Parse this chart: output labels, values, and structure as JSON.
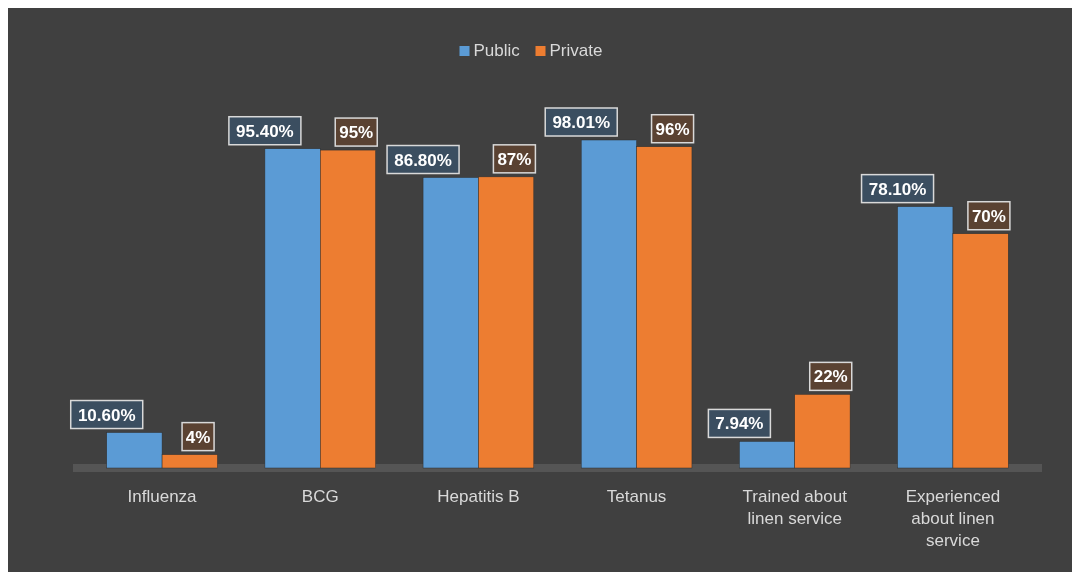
{
  "chart_data": {
    "type": "bar",
    "categories": [
      "Influenza",
      "BCG",
      "Hepatitis B",
      "Tetanus",
      "Trained about linen service",
      "Experienced about linen service"
    ],
    "series": [
      {
        "name": "Public",
        "color": "#5b9bd5",
        "values": [
          10.6,
          95.4,
          86.8,
          98.01,
          7.94,
          78.1
        ],
        "value_labels": [
          "10.60%",
          "95.40%",
          "86.80%",
          "98.01%",
          "7.94%",
          "78.10%"
        ]
      },
      {
        "name": "Private",
        "color": "#ed7d31",
        "values": [
          4,
          95,
          87,
          96,
          22,
          70
        ],
        "value_labels": [
          "4%",
          "95%",
          "87%",
          "96%",
          "22%",
          "70%"
        ]
      }
    ],
    "legend": "top"
  }
}
